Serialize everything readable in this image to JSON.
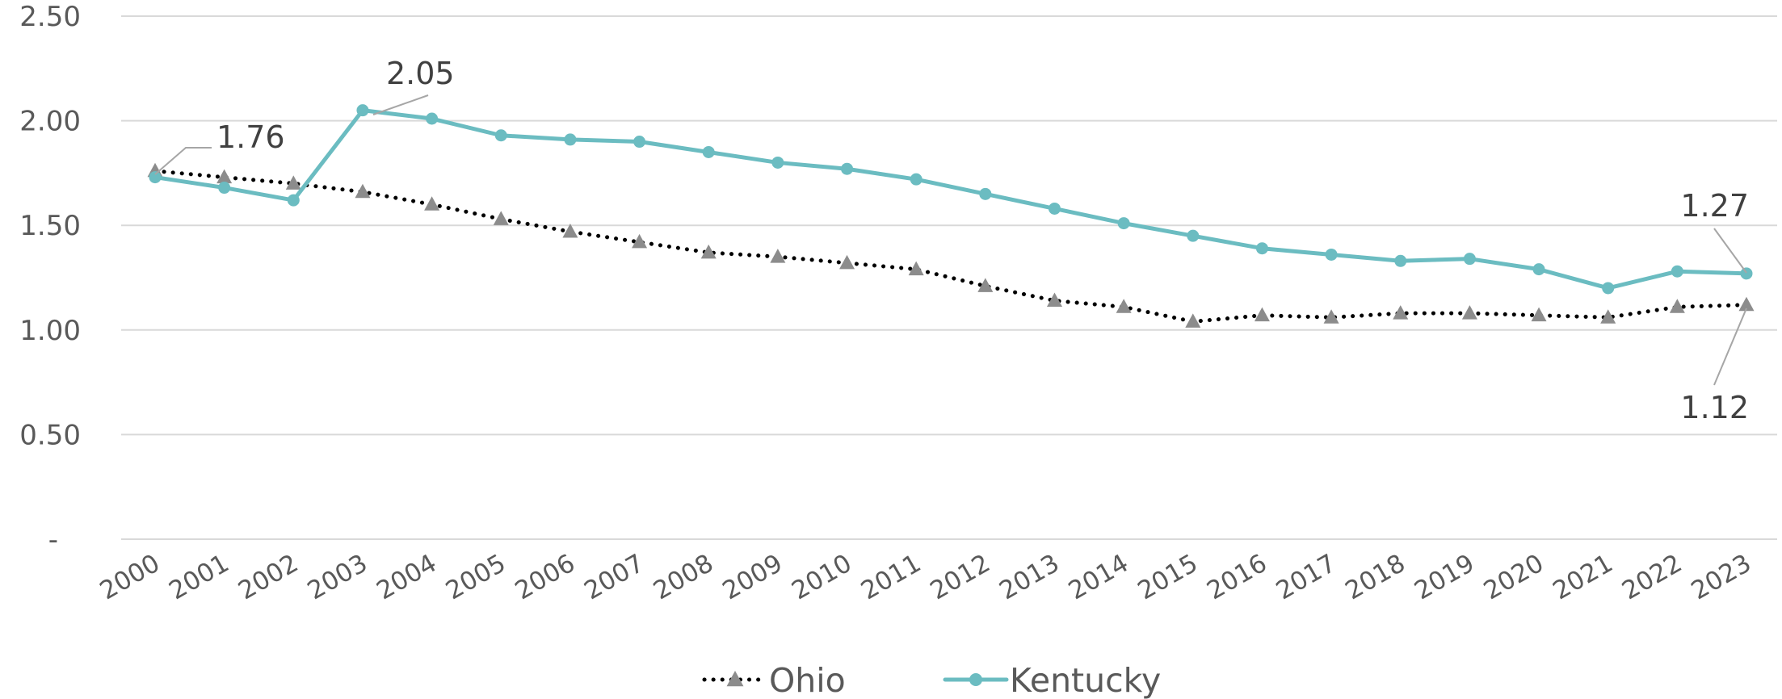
{
  "chart_data": {
    "type": "line",
    "categories": [
      "2000",
      "2001",
      "2002",
      "2003",
      "2004",
      "2005",
      "2006",
      "2007",
      "2008",
      "2009",
      "2010",
      "2011",
      "2012",
      "2013",
      "2014",
      "2015",
      "2016",
      "2017",
      "2018",
      "2019",
      "2020",
      "2021",
      "2022",
      "2023"
    ],
    "series": [
      {
        "name": "Ohio",
        "color": "#000000",
        "marker_color": "#8c8c8c",
        "marker": "triangle",
        "line_style": "dotted",
        "values": [
          1.76,
          1.73,
          1.7,
          1.66,
          1.6,
          1.53,
          1.47,
          1.42,
          1.37,
          1.35,
          1.32,
          1.29,
          1.21,
          1.14,
          1.11,
          1.04,
          1.07,
          1.06,
          1.08,
          1.08,
          1.07,
          1.06,
          1.11,
          1.12
        ]
      },
      {
        "name": "Kentucky",
        "color": "#6bbcc1",
        "marker_color": "#6bbcc1",
        "marker": "circle",
        "line_style": "solid",
        "values": [
          1.73,
          1.68,
          1.62,
          2.05,
          2.01,
          1.93,
          1.91,
          1.9,
          1.85,
          1.8,
          1.77,
          1.72,
          1.65,
          1.58,
          1.51,
          1.45,
          1.39,
          1.36,
          1.33,
          1.34,
          1.29,
          1.2,
          1.28,
          1.27
        ]
      }
    ],
    "y_ticks": [
      {
        "value": 0,
        "label": "-"
      },
      {
        "value": 0.5,
        "label": "0.50"
      },
      {
        "value": 1.0,
        "label": "1.00"
      },
      {
        "value": 1.5,
        "label": "1.50"
      },
      {
        "value": 2.0,
        "label": "2.00"
      },
      {
        "value": 2.5,
        "label": "2.50"
      }
    ],
    "ylim": [
      0,
      2.5
    ],
    "grid": true,
    "legend_position": "bottom",
    "annotations": [
      {
        "series": "Ohio",
        "category": "2000",
        "text": "1.76"
      },
      {
        "series": "Kentucky",
        "category": "2003",
        "text": "2.05"
      },
      {
        "series": "Kentucky",
        "category": "2023",
        "text": "1.27"
      },
      {
        "series": "Ohio",
        "category": "2023",
        "text": "1.12"
      }
    ],
    "title": "",
    "xlabel": "",
    "ylabel": ""
  }
}
